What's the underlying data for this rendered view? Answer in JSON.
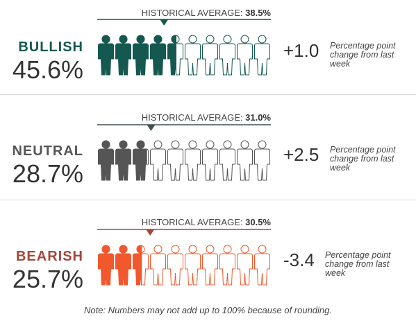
{
  "chart_data": {
    "type": "pictograph",
    "rows": [
      {
        "label": "BULLISH",
        "value_text": "45.6%",
        "value": 45.6,
        "historical_label": "HISTORICAL AVERAGE:",
        "historical_value_text": "38.5%",
        "historical_value": 38.5,
        "change_text": "+1.0",
        "change_note": "Percentage point change from last week",
        "color": "#14584f",
        "marker_color": "#14584f"
      },
      {
        "label": "NEUTRAL",
        "value_text": "28.7%",
        "value": 28.7,
        "historical_label": "HISTORICAL AVERAGE:",
        "historical_value_text": "31.0%",
        "historical_value": 31.0,
        "change_text": "+2.5",
        "change_note": "Percentage point change from last week",
        "color": "#555555",
        "marker_color": "#3f5151"
      },
      {
        "label": "BEARISH",
        "value_text": "25.7%",
        "value": 25.7,
        "historical_label": "HISTORICAL AVERAGE:",
        "historical_value_text": "30.5%",
        "historical_value": 30.5,
        "change_text": "-3.4",
        "change_note": "Percentage point change from last week",
        "color": "#f2582d",
        "marker_color": "#a3473b",
        "label_color": "#a3473b"
      }
    ],
    "icon_count": 10,
    "note": "Note: Numbers may not add up to 100% because of rounding."
  }
}
